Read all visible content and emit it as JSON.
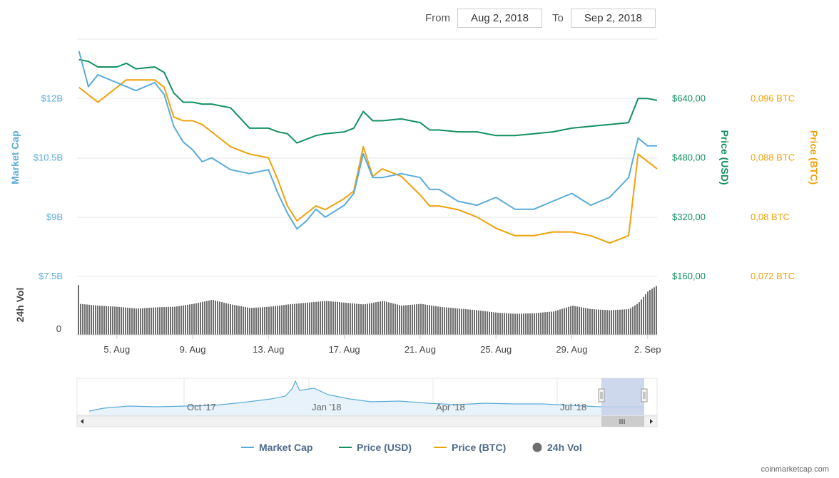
{
  "range": {
    "from_label": "From",
    "from_value": "Aug 2, 2018",
    "to_label": "To",
    "to_value": "Sep 2, 2018"
  },
  "credit": "coinmarketcap.com",
  "colors": {
    "market_cap": "#5aabd9",
    "price_usd": "#13905f",
    "price_btc": "#f0a10c",
    "volume": "#6e6e6e",
    "navigator_mask": "#c6d1ea"
  },
  "chart_data": {
    "type": "line",
    "x_ticks": [
      "5. Aug",
      "9. Aug",
      "13. Aug",
      "17. Aug",
      "21. Aug",
      "25. Aug",
      "29. Aug",
      "2. Sep"
    ],
    "x_tick_days": [
      5,
      9,
      13,
      17,
      21,
      25,
      29,
      33
    ],
    "x_range_days": [
      2.9,
      33.5
    ],
    "axes": {
      "market_cap": {
        "label": "Market Cap",
        "ticks": [
          "$12B",
          "$10.5B",
          "$9B",
          "$7.5B"
        ],
        "values": [
          12,
          10.5,
          9,
          7.5
        ],
        "range": [
          7.5,
          13.5
        ]
      },
      "price_usd": {
        "label": "Price (USD)",
        "ticks": [
          "$640,00",
          "$480,00",
          "$320,00",
          "$160,00"
        ],
        "values": [
          640,
          480,
          320,
          160
        ],
        "range": [
          160,
          800
        ]
      },
      "price_btc": {
        "label": "Price (BTC)",
        "ticks": [
          "0,096 BTC",
          "0,088 BTC",
          "0,08 BTC",
          "0,072 BTC"
        ],
        "values": [
          0.096,
          0.088,
          0.08,
          0.072
        ],
        "range": [
          0.072,
          0.104
        ]
      },
      "volume": {
        "label": "24h Vol",
        "ticks": [
          "0"
        ]
      }
    },
    "series": [
      {
        "name": "Market Cap",
        "axis": "market_cap",
        "x": [
          3,
          3.5,
          4,
          5,
          5.5,
          6,
          7,
          7.5,
          8,
          8.5,
          9,
          9.5,
          10,
          11,
          12,
          13,
          13.5,
          14,
          14.5,
          15,
          15.5,
          16,
          17,
          17.5,
          18,
          18.5,
          19,
          20,
          21,
          21.5,
          22,
          23,
          24,
          25,
          26,
          27,
          28,
          29,
          30,
          31,
          32,
          32.5,
          33,
          33.5
        ],
        "y": [
          13.2,
          12.3,
          12.6,
          12.4,
          12.3,
          12.2,
          12.4,
          12.1,
          11.3,
          10.9,
          10.7,
          10.4,
          10.5,
          10.2,
          10.1,
          10.2,
          9.6,
          9.1,
          8.7,
          8.9,
          9.2,
          9.0,
          9.3,
          9.6,
          10.6,
          10.0,
          10.0,
          10.1,
          10.0,
          9.7,
          9.7,
          9.4,
          9.3,
          9.5,
          9.2,
          9.2,
          9.4,
          9.6,
          9.3,
          9.5,
          10.0,
          11.0,
          10.8,
          10.8
        ]
      },
      {
        "name": "Price (USD)",
        "axis": "price_usd",
        "x": [
          3,
          3.5,
          4,
          5,
          5.5,
          6,
          7,
          7.5,
          8,
          8.5,
          9,
          9.5,
          10,
          11,
          12,
          13,
          13.5,
          14,
          14.5,
          15,
          15.5,
          16,
          17,
          17.5,
          18,
          18.5,
          19,
          20,
          21,
          21.5,
          22,
          23,
          24,
          25,
          26,
          27,
          28,
          29,
          30,
          31,
          32,
          32.5,
          33,
          33.5
        ],
        "y": [
          745,
          740,
          725,
          725,
          735,
          720,
          725,
          710,
          655,
          630,
          630,
          625,
          625,
          615,
          560,
          560,
          550,
          545,
          520,
          530,
          540,
          545,
          550,
          560,
          605,
          580,
          580,
          585,
          575,
          555,
          555,
          550,
          550,
          540,
          540,
          545,
          550,
          560,
          565,
          570,
          575,
          640,
          640,
          635
        ]
      },
      {
        "name": "Price (BTC)",
        "axis": "price_btc",
        "x": [
          3,
          3.5,
          4,
          5,
          5.5,
          6,
          7,
          7.5,
          8,
          8.5,
          9,
          9.5,
          10,
          11,
          12,
          13,
          13.5,
          14,
          14.5,
          15,
          15.5,
          16,
          17,
          17.5,
          18,
          18.5,
          19,
          20,
          21,
          21.5,
          22,
          23,
          24,
          25,
          26,
          27,
          28,
          29,
          30,
          31,
          32,
          32.5,
          33,
          33.5
        ],
        "y": [
          0.0975,
          0.0965,
          0.0955,
          0.0975,
          0.0985,
          0.0985,
          0.0985,
          0.0975,
          0.0935,
          0.093,
          0.093,
          0.0925,
          0.0915,
          0.0895,
          0.0885,
          0.088,
          0.085,
          0.0815,
          0.0795,
          0.0805,
          0.0815,
          0.081,
          0.0825,
          0.0835,
          0.0895,
          0.0855,
          0.0865,
          0.0855,
          0.083,
          0.0815,
          0.0815,
          0.081,
          0.08,
          0.0785,
          0.0775,
          0.0775,
          0.078,
          0.078,
          0.0775,
          0.0765,
          0.0775,
          0.0885,
          0.0875,
          0.0865
        ]
      },
      {
        "name": "24h Vol",
        "axis": "volume",
        "type": "column",
        "x": [
          3,
          4,
          5,
          6,
          7,
          8,
          9,
          10,
          11,
          12,
          13,
          14,
          15,
          16,
          17,
          18,
          19,
          20,
          21,
          22,
          23,
          24,
          25,
          26,
          27,
          28,
          29,
          30,
          31,
          32,
          32.5,
          33,
          33.5
        ],
        "y": [
          0.53,
          0.5,
          0.48,
          0.45,
          0.47,
          0.48,
          0.53,
          0.6,
          0.52,
          0.46,
          0.48,
          0.52,
          0.55,
          0.58,
          0.55,
          0.52,
          0.58,
          0.5,
          0.53,
          0.48,
          0.45,
          0.42,
          0.38,
          0.36,
          0.37,
          0.4,
          0.5,
          0.44,
          0.42,
          0.44,
          0.55,
          0.75,
          0.85
        ]
      }
    ],
    "navigator": {
      "labels": [
        "Oct '17",
        "Jan '18",
        "Apr '18",
        "Jul '18"
      ]
    },
    "legend": [
      "Market Cap",
      "Price (USD)",
      "Price (BTC)",
      "24h Vol"
    ],
    "legend_position": "bottom-center",
    "grid": true
  }
}
